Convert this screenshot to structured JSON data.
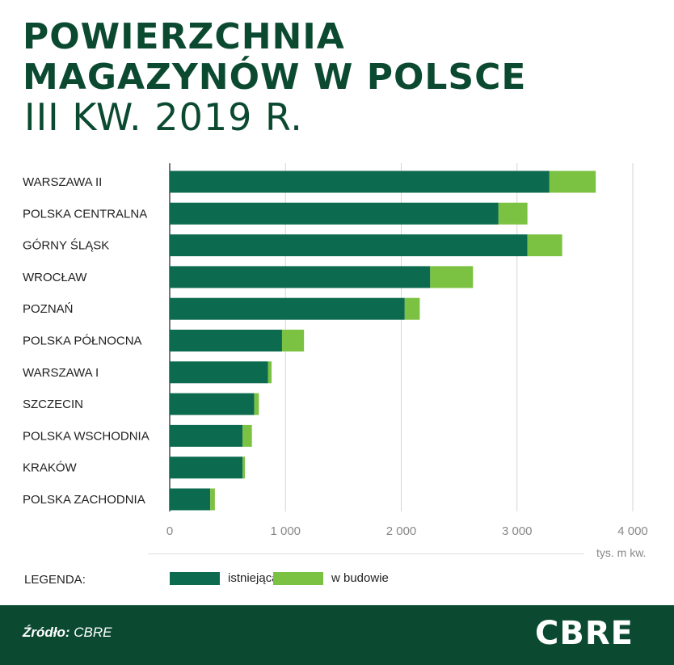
{
  "header": {
    "title_line1": "POWIERZCHNIA",
    "title_line2": "MAGAZYNÓW W POLSCE",
    "subtitle": "III KW. 2019 R."
  },
  "legend": {
    "title": "LEGENDA:",
    "items": [
      {
        "label": "istniejąca",
        "color": "#0c6b4e"
      },
      {
        "label": "w budowie",
        "color": "#7cc242"
      }
    ]
  },
  "footer": {
    "source_prefix": "Źródło:",
    "source_value": "CBRE",
    "logo": "CBRE"
  },
  "chart_data": {
    "type": "bar",
    "orientation": "horizontal",
    "stacked": true,
    "categories": [
      "WARSZAWA II",
      "POLSKA CENTRALNA",
      "GÓRNY ŚLĄSK",
      "WROCŁAW",
      "POZNAŃ",
      "POLSKA PÓŁNOCNA",
      "WARSZAWA I",
      "SZCZECIN",
      "POLSKA WSCHODNIA",
      "KRAKÓW",
      "POLSKA ZACHODNIA"
    ],
    "series": [
      {
        "name": "istniejąca",
        "color": "#0c6b4e",
        "values": [
          3280,
          2840,
          3090,
          2250,
          2030,
          970,
          850,
          730,
          630,
          630,
          350
        ]
      },
      {
        "name": "w budowie",
        "color": "#7cc242",
        "values": [
          400,
          250,
          300,
          370,
          130,
          190,
          30,
          40,
          80,
          20,
          40
        ]
      }
    ],
    "xlim": [
      0,
      4000
    ],
    "xticks": [
      0,
      1000,
      2000,
      3000,
      4000
    ],
    "xtick_labels": [
      "0",
      "1 000",
      "2 000",
      "3 000",
      "4 000"
    ],
    "xlabel": "tys. m kw.",
    "grid": true
  }
}
